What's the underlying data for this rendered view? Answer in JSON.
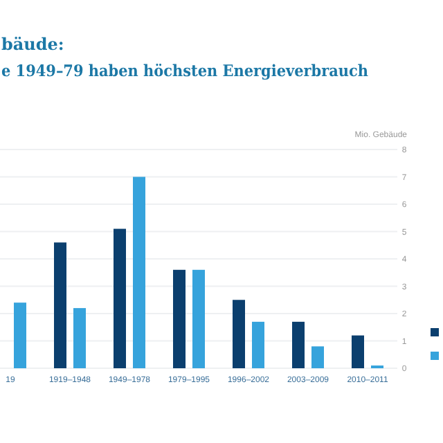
{
  "chart_data": {
    "type": "bar",
    "title": "bäude:",
    "subtitle": "e 1949–79 haben höchsten Energieverbrauch",
    "ylabel": "Mio. Gebäude",
    "categories": [
      "19",
      "1919–1948",
      "1949–1978",
      "1979–1995",
      "1996–2002",
      "2003–2009",
      "2010–2011"
    ],
    "series": [
      {
        "color": "#0b3f6e",
        "values": [
          null,
          4.6,
          5.1,
          3.6,
          2.5,
          1.7,
          1.2
        ]
      },
      {
        "color": "#36a3dc",
        "values": [
          2.4,
          2.2,
          7.0,
          3.6,
          1.7,
          0.8,
          0.1
        ]
      }
    ],
    "ylim": [
      0,
      8
    ],
    "yticks": [
      0,
      1,
      2,
      3,
      4,
      5,
      6,
      7,
      8
    ],
    "grid": "y"
  }
}
